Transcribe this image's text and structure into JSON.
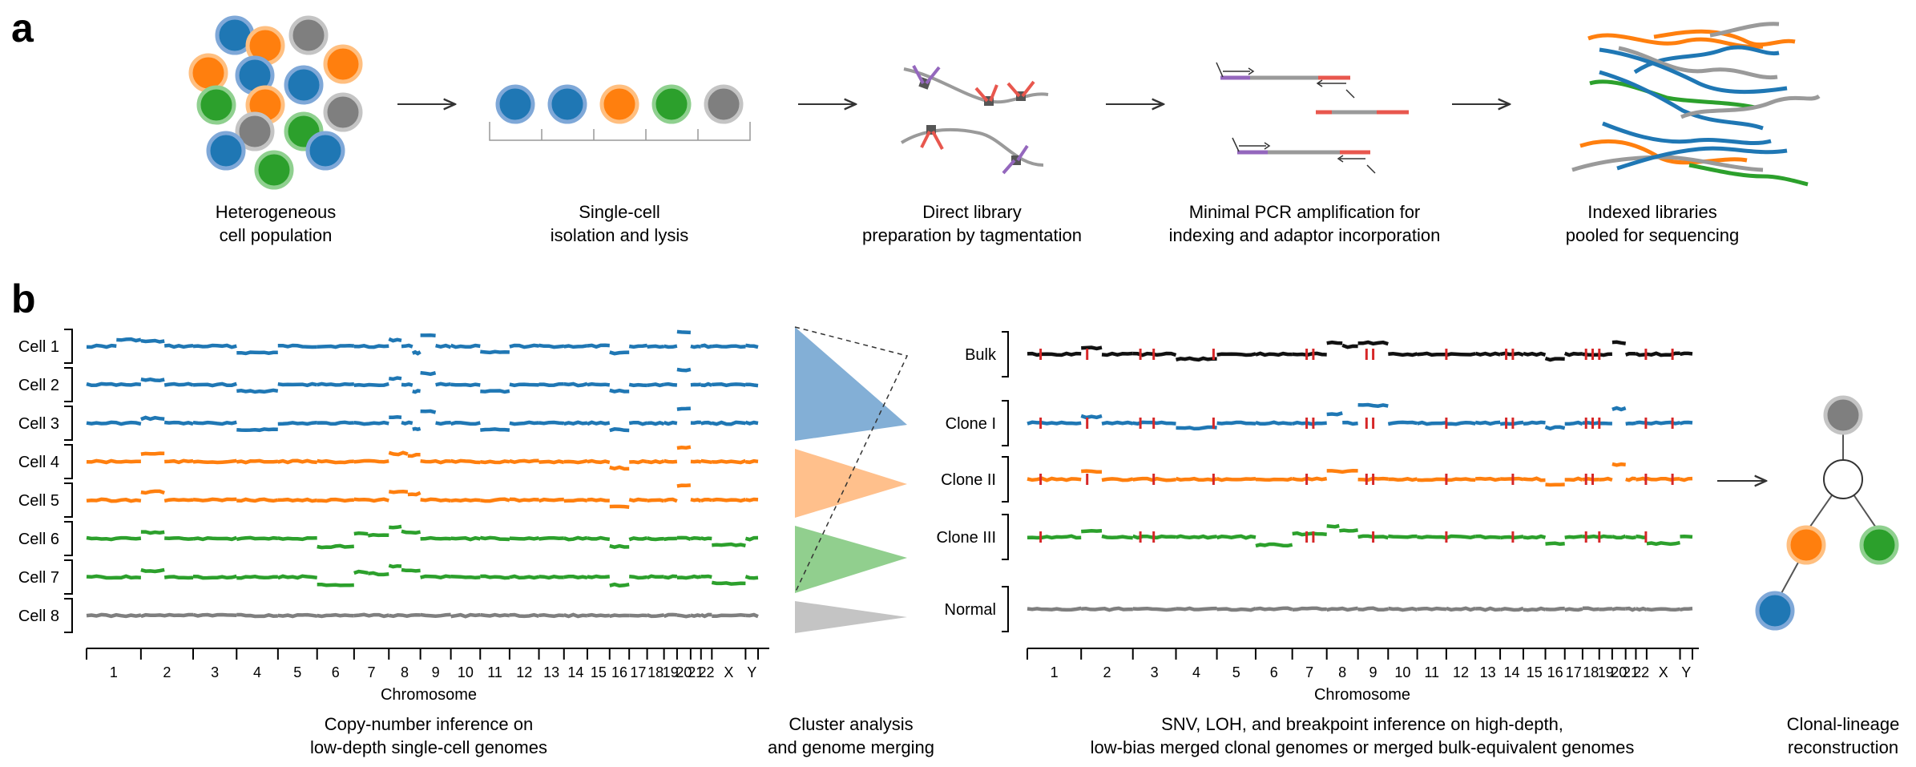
{
  "panel_a": {
    "letter": "a",
    "steps": [
      {
        "line1": "Heterogeneous",
        "line2": "cell population"
      },
      {
        "line1": "Single-cell",
        "line2": "isolation and lysis"
      },
      {
        "line1": "Direct library",
        "line2": "preparation by tagmentation"
      },
      {
        "line1": "Minimal PCR amplification for",
        "line2": "indexing and adaptor incorporation"
      },
      {
        "line1": "Indexed libraries",
        "line2": "pooled for sequencing"
      }
    ]
  },
  "panel_b": {
    "letter": "b",
    "cells": [
      "Cell 1",
      "Cell 2",
      "Cell 3",
      "Cell 4",
      "Cell 5",
      "Cell 6",
      "Cell 7",
      "Cell 8"
    ],
    "clones": [
      "Bulk",
      "Clone I",
      "Clone II",
      "Clone III",
      "Normal"
    ],
    "chromosome_label": "Chromosome",
    "chromosome_ticks": [
      "1",
      "2",
      "3",
      "4",
      "5",
      "6",
      "7",
      "8",
      "9",
      "10",
      "11",
      "12",
      "13",
      "14",
      "15",
      "16",
      "17",
      "18",
      "19",
      "20",
      "21",
      "22",
      "X",
      "Y"
    ],
    "captions": [
      {
        "line1": "Copy-number inference on",
        "line2": "low-depth single-cell genomes"
      },
      {
        "line1": "Cluster analysis",
        "line2": "and genome merging"
      },
      {
        "line1": "SNV, LOH, and breakpoint inference on high-depth,",
        "line2": "low-bias merged clonal genomes or merged bulk-equivalent genomes"
      },
      {
        "line1": "Clonal-lineage",
        "line2": "reconstruction"
      }
    ]
  },
  "colors": {
    "blue": "#1f77b4",
    "blue_ring": "#7fa8d8",
    "orange": "#ff7f0e",
    "orange_ring": "#ffbf80",
    "green": "#2ca02c",
    "green_ring": "#8fd08f",
    "gray": "#7f7f7f",
    "gray_ring": "#c4c4c4",
    "black": "#111111",
    "mutation_red": "#d62728",
    "purple": "#9467bd"
  }
}
